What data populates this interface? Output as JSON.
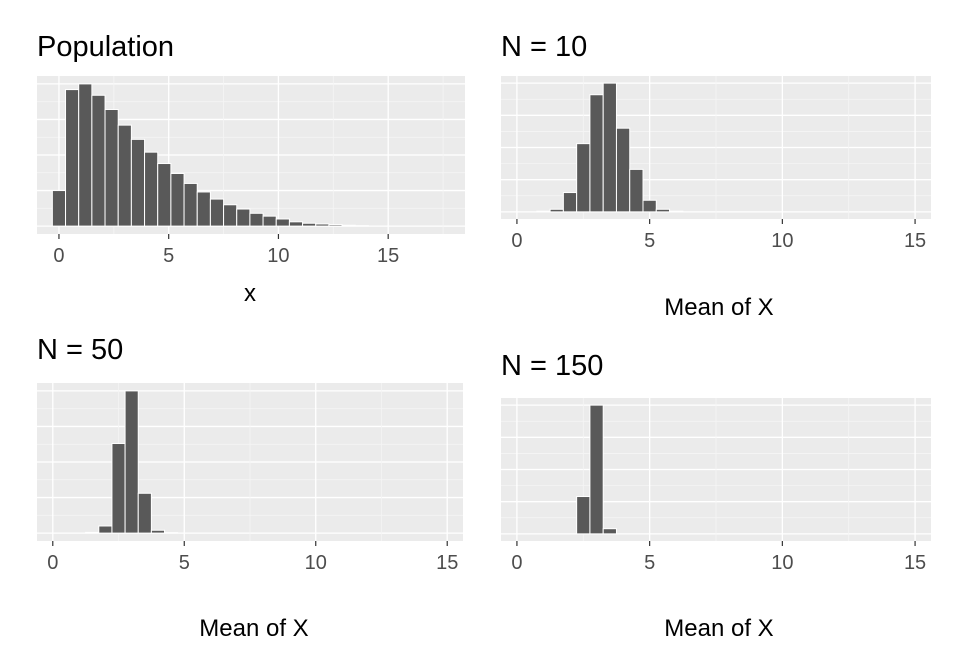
{
  "chart_data": [
    {
      "type": "bar",
      "title": "Population",
      "xlabel": "x",
      "ylabel": "",
      "xlim": [
        -1,
        18.5
      ],
      "ylim": [
        0,
        1
      ],
      "xticks": [
        0,
        5,
        10,
        15
      ],
      "grid": true,
      "bin_width": 0.6,
      "x": [
        0,
        0.6,
        1.2,
        1.8,
        2.4,
        3.0,
        3.6,
        4.2,
        4.8,
        5.4,
        6.0,
        6.6,
        7.2,
        7.8,
        8.4,
        9.0,
        9.6,
        10.2,
        10.8,
        11.4,
        12.0,
        12.6,
        13.2,
        13.8
      ],
      "values": [
        0.25,
        0.96,
        1.0,
        0.92,
        0.82,
        0.71,
        0.61,
        0.52,
        0.44,
        0.37,
        0.3,
        0.24,
        0.19,
        0.15,
        0.12,
        0.09,
        0.07,
        0.05,
        0.03,
        0.02,
        0.015,
        0.01,
        0.006,
        0.003
      ]
    },
    {
      "type": "bar",
      "title": "N = 10",
      "xlabel": "Mean of X",
      "ylabel": "",
      "xlim": [
        -0.6,
        15.6
      ],
      "ylim": [
        0,
        1
      ],
      "xticks": [
        0,
        5,
        10,
        15
      ],
      "grid": true,
      "bin_width": 0.5,
      "x": [
        1.0,
        1.5,
        2.0,
        2.5,
        3.0,
        3.5,
        4.0,
        4.5,
        5.0,
        5.5,
        6.0
      ],
      "values": [
        0.005,
        0.02,
        0.15,
        0.53,
        0.91,
        1.0,
        0.65,
        0.33,
        0.09,
        0.02,
        0.005
      ]
    },
    {
      "type": "bar",
      "title": "N = 50",
      "xlabel": "Mean of X",
      "ylabel": "",
      "xlim": [
        -0.6,
        15.6
      ],
      "ylim": [
        0,
        1
      ],
      "xticks": [
        0,
        5,
        10,
        15
      ],
      "grid": true,
      "bin_width": 0.5,
      "x": [
        1.5,
        2.0,
        2.5,
        3.0,
        3.5,
        4.0,
        4.5
      ],
      "values": [
        0.005,
        0.05,
        0.63,
        1.0,
        0.28,
        0.02,
        0.003
      ]
    },
    {
      "type": "bar",
      "title": "N = 150",
      "xlabel": "Mean of X",
      "ylabel": "",
      "xlim": [
        -0.6,
        15.6
      ],
      "ylim": [
        0,
        1
      ],
      "xticks": [
        0,
        5,
        10,
        15
      ],
      "grid": true,
      "bin_width": 0.5,
      "x": [
        2.5,
        3.0,
        3.5
      ],
      "values": [
        0.29,
        1.0,
        0.04
      ]
    }
  ],
  "colors": {
    "panel_background": "#ebebeb",
    "grid_major": "#ffffff",
    "grid_minor": "#f5f5f5",
    "bar_fill": "#595959",
    "bar_outline": "#ffffff",
    "tick_text": "#4d4d4d"
  }
}
